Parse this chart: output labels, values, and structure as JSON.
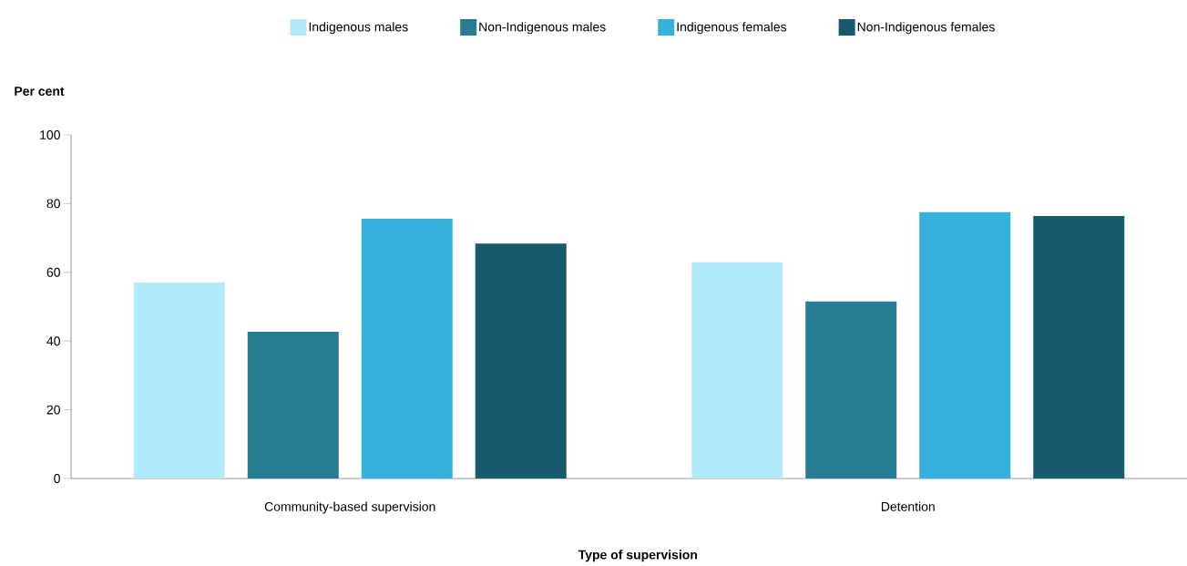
{
  "chart_data": {
    "type": "bar",
    "xlabel": "Type of supervision",
    "ylabel": "Per cent",
    "categories": [
      "Community-based supervision",
      "Detention"
    ],
    "series": [
      {
        "name": "Indigenous males",
        "color": "#b3eaf9",
        "values": [
          57.0,
          62.9
        ]
      },
      {
        "name": "Non-Indigenous males",
        "color": "#277c94",
        "values": [
          42.7,
          51.5
        ]
      },
      {
        "name": "Indigenous females",
        "color": "#35b2dc",
        "values": [
          75.6,
          77.5
        ]
      },
      {
        "name": "Non-Indigenous females",
        "color": "#175a6e",
        "values": [
          68.4,
          76.4
        ]
      }
    ],
    "ylim": [
      0,
      100
    ],
    "yticks": [
      0,
      20,
      40,
      60,
      80,
      100
    ],
    "legend": "top"
  }
}
